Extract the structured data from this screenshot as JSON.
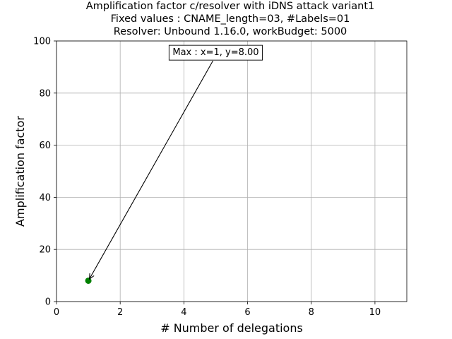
{
  "chart_data": {
    "type": "scatter",
    "title_lines": [
      "Amplification factor c/resolver with iDNS attack variant1",
      "Fixed values : CNAME_length=03, #Labels=01",
      "Resolver: Unbound 1.16.0, workBudget: 5000"
    ],
    "xlabel": "# Number of delegations",
    "ylabel": "Amplification factor",
    "xlim": [
      0,
      11
    ],
    "ylim": [
      0,
      100
    ],
    "xticks": [
      0,
      2,
      4,
      6,
      8,
      10
    ],
    "yticks": [
      0,
      20,
      40,
      60,
      80,
      100
    ],
    "grid": true,
    "series": [
      {
        "x": [
          1
        ],
        "y": [
          8.0
        ],
        "color": "#008000",
        "marker": "circle"
      }
    ],
    "annotation": {
      "text": "Max : x=1, y=8.00",
      "point": [
        1,
        8.0
      ],
      "text_anchor": [
        5,
        94
      ]
    }
  }
}
